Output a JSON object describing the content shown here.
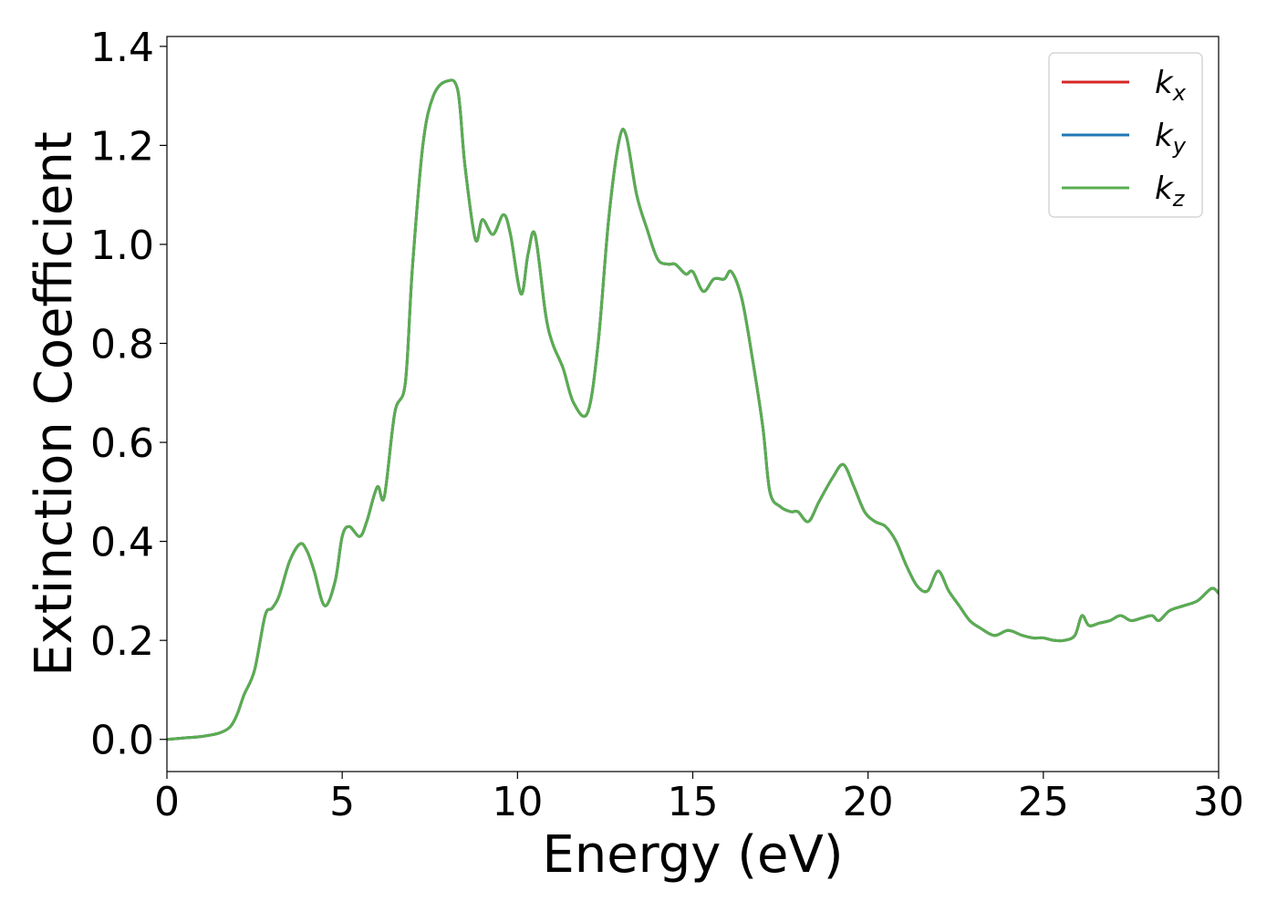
{
  "chart_data": {
    "type": "line",
    "xlabel": "Energy (eV)",
    "ylabel": "Extinction Coefficient",
    "xlim": [
      0,
      30
    ],
    "ylim": [
      -0.065,
      1.42
    ],
    "xticks": [
      0,
      5,
      10,
      15,
      20,
      25,
      30
    ],
    "xtick_labels": [
      "0",
      "5",
      "10",
      "15",
      "20",
      "25",
      "30"
    ],
    "yticks": [
      0.0,
      0.2,
      0.4,
      0.6,
      0.8,
      1.0,
      1.2,
      1.4
    ],
    "ytick_labels": [
      "0.0",
      "0.2",
      "0.4",
      "0.6",
      "0.8",
      "1.0",
      "1.2",
      "1.4"
    ],
    "grid": false,
    "legend_position": "top-right",
    "x": [
      0.0,
      0.5,
      1.0,
      1.5,
      1.8,
      2.0,
      2.2,
      2.5,
      2.8,
      3.0,
      3.2,
      3.5,
      3.8,
      4.0,
      4.2,
      4.5,
      4.8,
      5.0,
      5.2,
      5.5,
      5.7,
      6.0,
      6.2,
      6.5,
      6.8,
      7.0,
      7.3,
      7.6,
      8.0,
      8.3,
      8.5,
      8.8,
      9.0,
      9.3,
      9.6,
      9.8,
      10.1,
      10.3,
      10.5,
      10.8,
      11.0,
      11.3,
      11.6,
      12.0,
      12.3,
      12.6,
      12.9,
      13.1,
      13.4,
      13.7,
      14.0,
      14.3,
      14.5,
      14.8,
      15.0,
      15.3,
      15.6,
      15.9,
      16.1,
      16.4,
      16.7,
      17.0,
      17.2,
      17.5,
      17.8,
      18.0,
      18.3,
      18.6,
      19.0,
      19.3,
      19.6,
      19.9,
      20.2,
      20.5,
      20.8,
      21.1,
      21.4,
      21.7,
      22.0,
      22.3,
      22.6,
      22.9,
      23.2,
      23.6,
      24.0,
      24.4,
      24.7,
      25.0,
      25.3,
      25.6,
      25.9,
      26.1,
      26.3,
      26.6,
      26.9,
      27.2,
      27.5,
      27.8,
      28.1,
      28.3,
      28.6,
      29.0,
      29.4,
      29.8,
      30.0
    ],
    "series": [
      {
        "name": "k_x",
        "color": "#d62728",
        "values": [
          0.0,
          0.003,
          0.006,
          0.013,
          0.025,
          0.05,
          0.09,
          0.14,
          0.25,
          0.265,
          0.29,
          0.36,
          0.395,
          0.38,
          0.34,
          0.27,
          0.32,
          0.41,
          0.43,
          0.41,
          0.44,
          0.51,
          0.49,
          0.66,
          0.72,
          0.95,
          1.2,
          1.3,
          1.33,
          1.31,
          1.16,
          1.01,
          1.05,
          1.02,
          1.06,
          1.02,
          0.9,
          0.98,
          1.02,
          0.86,
          0.8,
          0.75,
          0.68,
          0.66,
          0.8,
          1.05,
          1.21,
          1.22,
          1.1,
          1.03,
          0.97,
          0.96,
          0.96,
          0.94,
          0.945,
          0.905,
          0.93,
          0.93,
          0.945,
          0.89,
          0.77,
          0.63,
          0.5,
          0.47,
          0.46,
          0.46,
          0.44,
          0.48,
          0.53,
          0.555,
          0.51,
          0.46,
          0.44,
          0.43,
          0.4,
          0.35,
          0.31,
          0.3,
          0.34,
          0.3,
          0.27,
          0.24,
          0.225,
          0.21,
          0.22,
          0.21,
          0.205,
          0.205,
          0.2,
          0.2,
          0.21,
          0.25,
          0.23,
          0.235,
          0.24,
          0.25,
          0.24,
          0.245,
          0.25,
          0.24,
          0.26,
          0.27,
          0.28,
          0.305,
          0.295
        ]
      },
      {
        "name": "k_y",
        "color": "#1f77b4",
        "values": [
          0.0,
          0.003,
          0.006,
          0.013,
          0.025,
          0.05,
          0.09,
          0.14,
          0.25,
          0.265,
          0.29,
          0.36,
          0.395,
          0.38,
          0.34,
          0.27,
          0.32,
          0.41,
          0.43,
          0.41,
          0.44,
          0.51,
          0.49,
          0.66,
          0.72,
          0.95,
          1.2,
          1.3,
          1.33,
          1.31,
          1.16,
          1.01,
          1.05,
          1.02,
          1.06,
          1.02,
          0.9,
          0.98,
          1.02,
          0.86,
          0.8,
          0.75,
          0.68,
          0.66,
          0.8,
          1.05,
          1.21,
          1.22,
          1.1,
          1.03,
          0.97,
          0.96,
          0.96,
          0.94,
          0.945,
          0.905,
          0.93,
          0.93,
          0.945,
          0.89,
          0.77,
          0.63,
          0.5,
          0.47,
          0.46,
          0.46,
          0.44,
          0.48,
          0.53,
          0.555,
          0.51,
          0.46,
          0.44,
          0.43,
          0.4,
          0.35,
          0.31,
          0.3,
          0.34,
          0.3,
          0.27,
          0.24,
          0.225,
          0.21,
          0.22,
          0.21,
          0.205,
          0.205,
          0.2,
          0.2,
          0.21,
          0.25,
          0.23,
          0.235,
          0.24,
          0.25,
          0.24,
          0.245,
          0.25,
          0.24,
          0.26,
          0.27,
          0.28,
          0.305,
          0.295
        ]
      },
      {
        "name": "k_z",
        "color": "#5aad50",
        "values": [
          0.0,
          0.003,
          0.006,
          0.013,
          0.025,
          0.05,
          0.09,
          0.14,
          0.25,
          0.265,
          0.29,
          0.36,
          0.395,
          0.38,
          0.34,
          0.27,
          0.32,
          0.41,
          0.43,
          0.41,
          0.44,
          0.51,
          0.49,
          0.66,
          0.72,
          0.95,
          1.2,
          1.3,
          1.33,
          1.31,
          1.16,
          1.01,
          1.05,
          1.02,
          1.06,
          1.02,
          0.9,
          0.98,
          1.02,
          0.86,
          0.8,
          0.75,
          0.68,
          0.66,
          0.8,
          1.05,
          1.21,
          1.22,
          1.1,
          1.03,
          0.97,
          0.96,
          0.96,
          0.94,
          0.945,
          0.905,
          0.93,
          0.93,
          0.945,
          0.89,
          0.77,
          0.63,
          0.5,
          0.47,
          0.46,
          0.46,
          0.44,
          0.48,
          0.53,
          0.555,
          0.51,
          0.46,
          0.44,
          0.43,
          0.4,
          0.35,
          0.31,
          0.3,
          0.34,
          0.3,
          0.27,
          0.24,
          0.225,
          0.21,
          0.22,
          0.21,
          0.205,
          0.205,
          0.2,
          0.2,
          0.21,
          0.25,
          0.23,
          0.235,
          0.24,
          0.25,
          0.24,
          0.245,
          0.25,
          0.24,
          0.26,
          0.27,
          0.28,
          0.305,
          0.295
        ]
      }
    ],
    "legend": [
      {
        "base": "k",
        "sub": "x",
        "color": "#d62728"
      },
      {
        "base": "k",
        "sub": "y",
        "color": "#1f77b4"
      },
      {
        "base": "k",
        "sub": "z",
        "color": "#5aad50"
      }
    ]
  }
}
